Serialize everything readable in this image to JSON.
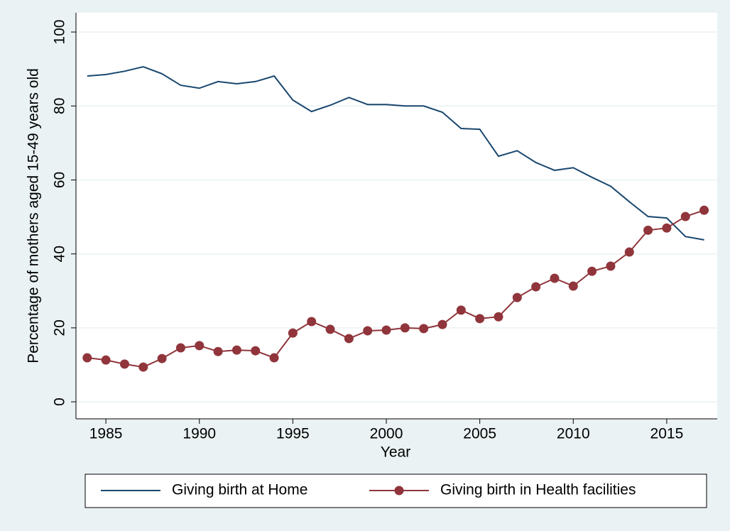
{
  "chart_data": {
    "type": "line",
    "x_label": "Year",
    "y_label": "Percentage of mothers aged 15-49 years old",
    "x": [
      1984,
      1985,
      1986,
      1987,
      1988,
      1989,
      1990,
      1991,
      1992,
      1993,
      1994,
      1995,
      1996,
      1997,
      1998,
      1999,
      2000,
      2001,
      2002,
      2003,
      2004,
      2005,
      2006,
      2007,
      2008,
      2009,
      2010,
      2011,
      2012,
      2013,
      2014,
      2015,
      2016,
      2017
    ],
    "series": [
      {
        "name": "Giving birth at Home",
        "color": "#1a476f",
        "marker": false,
        "values": [
          88.1,
          88.5,
          89.4,
          90.6,
          88.7,
          85.6,
          84.8,
          86.6,
          86.0,
          86.6,
          88.1,
          81.6,
          78.5,
          80.2,
          82.3,
          80.4,
          80.4,
          80.0,
          80.0,
          78.3,
          73.9,
          73.7,
          66.4,
          67.9,
          64.7,
          62.6,
          63.3,
          60.7,
          58.3,
          54.1,
          50.1,
          49.7,
          44.7,
          43.8
        ]
      },
      {
        "name": "Giving birth in Health facilities",
        "color": "#90353b",
        "marker": true,
        "values": [
          11.9,
          11.3,
          10.2,
          9.4,
          11.7,
          14.6,
          15.2,
          13.6,
          14.0,
          13.8,
          11.9,
          18.6,
          21.7,
          19.6,
          17.1,
          19.2,
          19.4,
          20.0,
          19.8,
          20.9,
          24.8,
          22.5,
          23.0,
          28.2,
          31.1,
          33.4,
          31.3,
          35.3,
          36.7,
          40.5,
          46.4,
          47.0,
          50.1,
          51.8
        ]
      }
    ],
    "xlim": [
      1983.4,
      2017.7
    ],
    "xticks": [
      1985,
      1990,
      1995,
      2000,
      2005,
      2010,
      2015
    ],
    "ylim": [
      -4.6,
      105.2
    ],
    "yticks": [
      0,
      20,
      40,
      60,
      80,
      100
    ],
    "grid": true,
    "legend": "bottom"
  }
}
